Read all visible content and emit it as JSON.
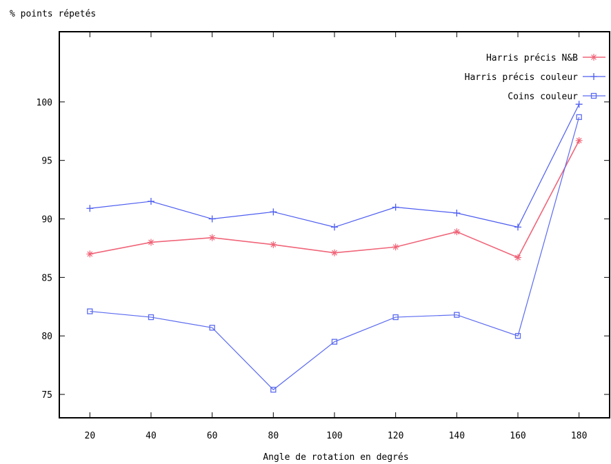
{
  "chart_data": {
    "type": "line",
    "ylabel": "% points répetés",
    "xlabel": "Angle de rotation en degrés",
    "x": [
      20,
      40,
      60,
      80,
      100,
      120,
      140,
      160,
      180
    ],
    "xlim": [
      10,
      190
    ],
    "ylim": [
      73,
      106
    ],
    "yticks": [
      75,
      80,
      85,
      90,
      95,
      100
    ],
    "grid": false,
    "legend_position": "top-right",
    "series": [
      {
        "name": "Harris précis N&B",
        "color": "#f06478",
        "marker": "star",
        "values": [
          87.0,
          88.0,
          88.4,
          87.8,
          87.1,
          87.6,
          88.9,
          86.7,
          96.7
        ]
      },
      {
        "name": "Harris précis couleur",
        "color": "#4c5cf0",
        "marker": "plus",
        "values": [
          90.9,
          91.5,
          90.0,
          90.6,
          89.3,
          91.0,
          90.5,
          89.3,
          99.8
        ]
      },
      {
        "name": "Coins couleur",
        "color": "#5a6af0",
        "marker": "square",
        "values": [
          82.1,
          81.6,
          80.7,
          75.4,
          79.5,
          81.6,
          81.8,
          80.0,
          98.7
        ]
      }
    ]
  }
}
